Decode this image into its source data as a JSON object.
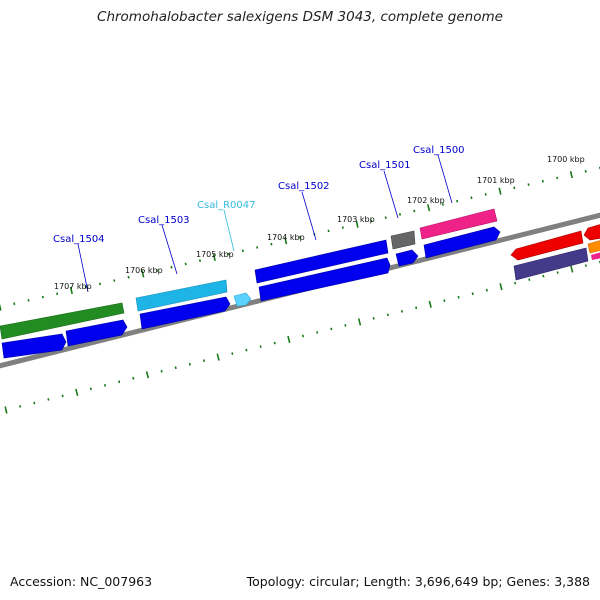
{
  "title": "Chromohalobacter salexigens DSM 3043, complete genome",
  "accession": "Accession: NC_007963",
  "info": "Topology: circular; Length: 3,696,649 bp; Genes: 3,388",
  "colors": {
    "backbone": "#808080",
    "tick": "#1a7a1a",
    "label_blue": "#0000cc",
    "label_cyan": "#33bbdd",
    "blue": "#0000ee",
    "green": "#228b22",
    "cyan": "#1eb4e6",
    "light_cyan": "#5ad2ff",
    "gray": "#666666",
    "pink": "#ee2288",
    "red": "#ee0000",
    "navy": "#443a8a",
    "orange": "#ff8c00"
  },
  "kbp_labels": [
    "1707 kbp",
    "1706 kbp",
    "1705 kbp",
    "1704 kbp",
    "1703 kbp",
    "1702 kbp",
    "1701 kbp",
    "1700 kbp"
  ],
  "gene_labels": [
    "Csal_1504",
    "Csal_1503",
    "Csal_R0047",
    "Csal_1502",
    "Csal_1501",
    "Csal_1500"
  ]
}
